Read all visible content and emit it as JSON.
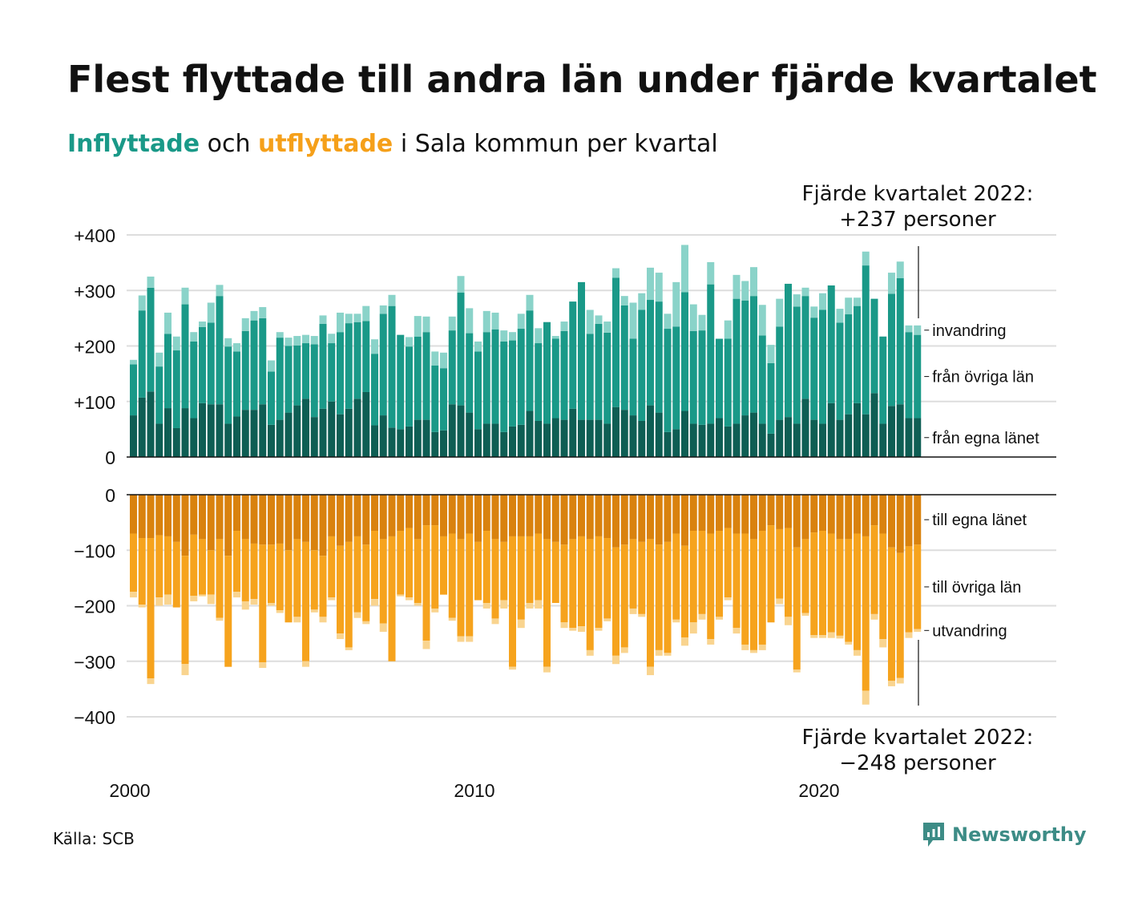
{
  "title": "Flest flyttade till andra län under fjärde kvartalet",
  "subtitle": {
    "in_word": "Inflyttade",
    "and_word": "och",
    "out_word": "utflyttade",
    "rest": "i Sala kommun per kvartal"
  },
  "annotations": {
    "top_line1": "Fjärde kvartalet 2022:",
    "top_line2": "+237 personer",
    "bottom_line1": "Fjärde kvartalet 2022:",
    "bottom_line2": "−248 personer"
  },
  "source": "Källa: SCB",
  "brand": "Newsworthy",
  "colors": {
    "in_egna": "#0e5e54",
    "in_ovriga": "#1a9988",
    "in_invandring": "#8ad3c9",
    "out_egna": "#d9820e",
    "out_ovriga": "#f6a31d",
    "out_utvandring": "#f9d48f",
    "grid": "#dddddd",
    "logo": "#3d8c86"
  },
  "chart_data": {
    "type": "bar",
    "stacked": true,
    "x_start": "2000 Q1",
    "x_end": "2022 Q4",
    "xticks": [
      "2000",
      "2010",
      "2020"
    ],
    "yticks": [
      "+400",
      "+300",
      "+200",
      "+100",
      "0",
      "0",
      "−100",
      "−200",
      "−300",
      "−400"
    ],
    "ylim_in": [
      0,
      400
    ],
    "ylim_out": [
      -400,
      0
    ],
    "grid": true,
    "series_in": [
      {
        "name": "från egna länet",
        "values": [
          75,
          107,
          118,
          60,
          88,
          52,
          88,
          70,
          97,
          95,
          95,
          60,
          73,
          85,
          85,
          95,
          58,
          67,
          80,
          93,
          105,
          72,
          87,
          100,
          77,
          87,
          105,
          117,
          57,
          75,
          53,
          50,
          55,
          67,
          67,
          45,
          48,
          95,
          93,
          80,
          50,
          60,
          60,
          45,
          55,
          58,
          83,
          65,
          60,
          70,
          67,
          87,
          67,
          67,
          67,
          60,
          90,
          85,
          75,
          65,
          93,
          80,
          45,
          50,
          83,
          60,
          58,
          60,
          70,
          55,
          60,
          75,
          80,
          60,
          42,
          67,
          72,
          60,
          105,
          67,
          60,
          97,
          67,
          77,
          97,
          77,
          115,
          60,
          92,
          95,
          70,
          70
        ]
      },
      {
        "name": "från övriga län",
        "values": [
          92,
          157,
          187,
          103,
          134,
          140,
          187,
          138,
          137,
          147,
          195,
          139,
          117,
          142,
          161,
          155,
          96,
          148,
          120,
          108,
          100,
          131,
          153,
          105,
          148,
          154,
          138,
          128,
          129,
          183,
          219,
          170,
          144,
          150,
          158,
          120,
          112,
          133,
          203,
          143,
          140,
          165,
          170,
          163,
          155,
          173,
          181,
          140,
          183,
          143,
          160,
          193,
          248,
          155,
          173,
          164,
          233,
          188,
          138,
          200,
          190,
          200,
          186,
          185,
          214,
          167,
          170,
          251,
          143,
          158,
          225,
          207,
          210,
          159,
          127,
          168,
          240,
          211,
          185,
          184,
          205,
          212,
          175,
          180,
          175,
          268,
          170,
          157,
          202,
          227,
          155,
          150
        ]
      },
      {
        "name": "invandring",
        "values": [
          8,
          27,
          20,
          25,
          38,
          25,
          30,
          17,
          10,
          36,
          20,
          15,
          15,
          23,
          17,
          20,
          20,
          10,
          15,
          17,
          15,
          15,
          15,
          17,
          35,
          17,
          15,
          27,
          26,
          15,
          20,
          0,
          17,
          37,
          28,
          25,
          28,
          25,
          30,
          45,
          18,
          38,
          30,
          20,
          15,
          27,
          28,
          27,
          0,
          5,
          17,
          0,
          0,
          43,
          15,
          20,
          17,
          17,
          65,
          30,
          58,
          52,
          27,
          80,
          85,
          48,
          28,
          40,
          0,
          33,
          43,
          35,
          52,
          55,
          33,
          50,
          0,
          22,
          15,
          20,
          30,
          0,
          25,
          30,
          15,
          25,
          0,
          0,
          38,
          30,
          12,
          17
        ]
      }
    ],
    "series_out": [
      {
        "name": "till egna länet",
        "values": [
          70,
          78,
          78,
          73,
          75,
          85,
          110,
          72,
          80,
          100,
          80,
          110,
          65,
          80,
          88,
          90,
          90,
          88,
          100,
          80,
          85,
          100,
          110,
          75,
          92,
          85,
          75,
          90,
          65,
          80,
          75,
          65,
          60,
          80,
          55,
          55,
          75,
          70,
          80,
          70,
          85,
          65,
          80,
          85,
          75,
          75,
          75,
          70,
          80,
          85,
          90,
          80,
          75,
          80,
          75,
          78,
          95,
          90,
          80,
          85,
          80,
          90,
          85,
          70,
          92,
          65,
          65,
          70,
          65,
          60,
          70,
          70,
          80,
          65,
          55,
          62,
          60,
          95,
          80,
          68,
          65,
          70,
          80,
          80,
          70,
          75,
          55,
          70,
          95,
          105,
          93,
          90
        ]
      },
      {
        "name": "till övriga län",
        "values": [
          105,
          120,
          253,
          112,
          105,
          118,
          195,
          110,
          100,
          80,
          142,
          200,
          110,
          112,
          100,
          212,
          105,
          120,
          130,
          140,
          215,
          107,
          110,
          110,
          158,
          190,
          137,
          138,
          123,
          152,
          225,
          115,
          125,
          115,
          208,
          150,
          105,
          152,
          175,
          185,
          105,
          130,
          143,
          105,
          235,
          150,
          120,
          120,
          230,
          110,
          140,
          160,
          162,
          200,
          165,
          145,
          195,
          185,
          125,
          130,
          230,
          190,
          200,
          155,
          165,
          165,
          150,
          190,
          155,
          125,
          170,
          200,
          200,
          205,
          175,
          125,
          160,
          220,
          133,
          185,
          188,
          178,
          174,
          185,
          210,
          278,
          160,
          190,
          240,
          225,
          155,
          152
        ]
      },
      {
        "name": "utvandring",
        "values": [
          10,
          5,
          10,
          15,
          18,
          0,
          20,
          10,
          3,
          17,
          5,
          0,
          10,
          15,
          10,
          10,
          5,
          5,
          0,
          10,
          10,
          5,
          10,
          5,
          10,
          5,
          10,
          5,
          12,
          15,
          0,
          3,
          5,
          5,
          15,
          7,
          0,
          5,
          10,
          10,
          0,
          10,
          10,
          15,
          5,
          15,
          10,
          15,
          10,
          0,
          10,
          5,
          10,
          10,
          5,
          5,
          15,
          10,
          10,
          5,
          15,
          10,
          5,
          5,
          15,
          20,
          10,
          10,
          5,
          5,
          10,
          10,
          5,
          10,
          0,
          10,
          15,
          5,
          5,
          5,
          5,
          10,
          5,
          5,
          10,
          25,
          10,
          15,
          10,
          10,
          10,
          5
        ]
      }
    ]
  }
}
